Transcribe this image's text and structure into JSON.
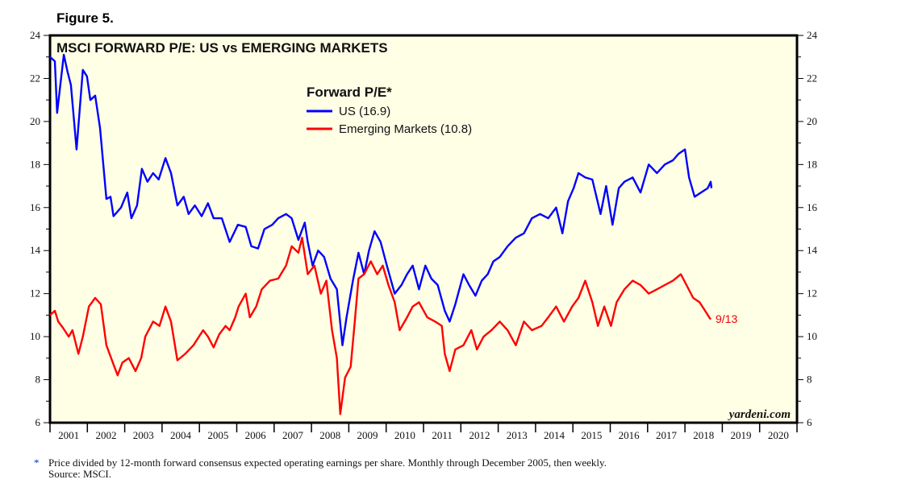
{
  "figure_label": "Figure 5.",
  "footnote": {
    "star": "*",
    "line1": "Price divided by 12-month forward consensus expected operating earnings per share. Monthly through December 2005, then weekly.",
    "line2": "Source: MSCI."
  },
  "watermark": "yardeni.com",
  "chart_data": {
    "type": "line",
    "title": "MSCI FORWARD P/E: US vs EMERGING MARKETS",
    "legend_title": "Forward P/E*",
    "legend_placement": "top-center",
    "xlim": [
      2001,
      2021
    ],
    "ylim": [
      6,
      24
    ],
    "y_ticks": [
      6,
      8,
      10,
      12,
      14,
      16,
      18,
      20,
      22,
      24
    ],
    "x_tick_labels": [
      "2001",
      "2002",
      "2003",
      "2004",
      "2005",
      "2006",
      "2007",
      "2008",
      "2009",
      "2010",
      "2011",
      "2012",
      "2013",
      "2014",
      "2015",
      "2016",
      "2017",
      "2018",
      "2019",
      "2020"
    ],
    "grid": false,
    "background": "#ffffe6",
    "end_label": "9/13",
    "series": [
      {
        "name": "US (16.9)",
        "color": "#0000ff",
        "points": [
          [
            2001.0,
            23.0
          ],
          [
            2001.13,
            22.8
          ],
          [
            2001.19,
            20.4
          ],
          [
            2001.37,
            23.1
          ],
          [
            2001.47,
            22.3
          ],
          [
            2001.56,
            21.7
          ],
          [
            2001.71,
            18.7
          ],
          [
            2001.88,
            22.4
          ],
          [
            2001.99,
            22.1
          ],
          [
            2002.08,
            21.0
          ],
          [
            2002.21,
            21.2
          ],
          [
            2002.34,
            19.7
          ],
          [
            2002.51,
            16.4
          ],
          [
            2002.62,
            16.5
          ],
          [
            2002.7,
            15.6
          ],
          [
            2002.9,
            16.0
          ],
          [
            2003.07,
            16.7
          ],
          [
            2003.18,
            15.5
          ],
          [
            2003.33,
            16.1
          ],
          [
            2003.46,
            17.8
          ],
          [
            2003.61,
            17.2
          ],
          [
            2003.76,
            17.6
          ],
          [
            2003.91,
            17.3
          ],
          [
            2004.09,
            18.3
          ],
          [
            2004.24,
            17.6
          ],
          [
            2004.41,
            16.1
          ],
          [
            2004.58,
            16.5
          ],
          [
            2004.71,
            15.7
          ],
          [
            2004.88,
            16.1
          ],
          [
            2005.06,
            15.6
          ],
          [
            2005.23,
            16.2
          ],
          [
            2005.38,
            15.5
          ],
          [
            2005.6,
            15.5
          ],
          [
            2005.81,
            14.4
          ],
          [
            2006.03,
            15.2
          ],
          [
            2006.24,
            15.1
          ],
          [
            2006.39,
            14.2
          ],
          [
            2006.57,
            14.1
          ],
          [
            2006.74,
            15.0
          ],
          [
            2006.95,
            15.2
          ],
          [
            2007.11,
            15.5
          ],
          [
            2007.32,
            15.7
          ],
          [
            2007.47,
            15.5
          ],
          [
            2007.65,
            14.5
          ],
          [
            2007.82,
            15.3
          ],
          [
            2007.9,
            14.4
          ],
          [
            2008.03,
            13.3
          ],
          [
            2008.18,
            14.0
          ],
          [
            2008.34,
            13.7
          ],
          [
            2008.51,
            12.7
          ],
          [
            2008.68,
            12.2
          ],
          [
            2008.83,
            9.6
          ],
          [
            2008.94,
            10.9
          ],
          [
            2009.11,
            12.6
          ],
          [
            2009.26,
            13.9
          ],
          [
            2009.41,
            12.9
          ],
          [
            2009.54,
            14.0
          ],
          [
            2009.69,
            14.9
          ],
          [
            2009.85,
            14.4
          ],
          [
            2010.02,
            13.3
          ],
          [
            2010.23,
            12.0
          ],
          [
            2010.41,
            12.4
          ],
          [
            2010.56,
            12.9
          ],
          [
            2010.71,
            13.3
          ],
          [
            2010.88,
            12.2
          ],
          [
            2011.05,
            13.3
          ],
          [
            2011.21,
            12.7
          ],
          [
            2011.38,
            12.4
          ],
          [
            2011.57,
            11.2
          ],
          [
            2011.7,
            10.7
          ],
          [
            2011.85,
            11.5
          ],
          [
            2012.07,
            12.9
          ],
          [
            2012.22,
            12.4
          ],
          [
            2012.39,
            11.9
          ],
          [
            2012.56,
            12.6
          ],
          [
            2012.72,
            12.9
          ],
          [
            2012.87,
            13.5
          ],
          [
            2013.04,
            13.7
          ],
          [
            2013.25,
            14.2
          ],
          [
            2013.47,
            14.6
          ],
          [
            2013.69,
            14.8
          ],
          [
            2013.9,
            15.5
          ],
          [
            2014.12,
            15.7
          ],
          [
            2014.34,
            15.5
          ],
          [
            2014.55,
            16.0
          ],
          [
            2014.72,
            14.8
          ],
          [
            2014.87,
            16.3
          ],
          [
            2015.02,
            16.9
          ],
          [
            2015.15,
            17.6
          ],
          [
            2015.33,
            17.4
          ],
          [
            2015.52,
            17.3
          ],
          [
            2015.74,
            15.7
          ],
          [
            2015.89,
            17.0
          ],
          [
            2016.06,
            15.2
          ],
          [
            2016.23,
            16.9
          ],
          [
            2016.38,
            17.2
          ],
          [
            2016.6,
            17.4
          ],
          [
            2016.81,
            16.7
          ],
          [
            2017.03,
            18.0
          ],
          [
            2017.25,
            17.6
          ],
          [
            2017.46,
            18.0
          ],
          [
            2017.68,
            18.2
          ],
          [
            2017.83,
            18.5
          ],
          [
            2018.0,
            18.7
          ],
          [
            2018.11,
            17.4
          ],
          [
            2018.26,
            16.5
          ],
          [
            2018.43,
            16.7
          ],
          [
            2018.61,
            16.9
          ],
          [
            2018.69,
            17.2
          ],
          [
            2018.71,
            16.9
          ]
        ]
      },
      {
        "name": "Emerging Markets (10.8)",
        "color": "#ff0000",
        "points": [
          [
            2001.0,
            11.0
          ],
          [
            2001.13,
            11.2
          ],
          [
            2001.22,
            10.7
          ],
          [
            2001.35,
            10.4
          ],
          [
            2001.5,
            10.0
          ],
          [
            2001.6,
            10.3
          ],
          [
            2001.76,
            9.2
          ],
          [
            2001.88,
            10.0
          ],
          [
            2002.04,
            11.4
          ],
          [
            2002.21,
            11.8
          ],
          [
            2002.36,
            11.5
          ],
          [
            2002.51,
            9.6
          ],
          [
            2002.68,
            8.8
          ],
          [
            2002.81,
            8.2
          ],
          [
            2002.94,
            8.8
          ],
          [
            2003.11,
            9.0
          ],
          [
            2003.29,
            8.4
          ],
          [
            2003.44,
            9.0
          ],
          [
            2003.55,
            10.0
          ],
          [
            2003.76,
            10.7
          ],
          [
            2003.93,
            10.5
          ],
          [
            2004.09,
            11.4
          ],
          [
            2004.24,
            10.7
          ],
          [
            2004.41,
            8.9
          ],
          [
            2004.62,
            9.2
          ],
          [
            2004.84,
            9.6
          ],
          [
            2005.1,
            10.3
          ],
          [
            2005.23,
            10.0
          ],
          [
            2005.38,
            9.5
          ],
          [
            2005.53,
            10.1
          ],
          [
            2005.7,
            10.5
          ],
          [
            2005.81,
            10.3
          ],
          [
            2005.96,
            10.9
          ],
          [
            2006.05,
            11.4
          ],
          [
            2006.24,
            12.0
          ],
          [
            2006.35,
            10.9
          ],
          [
            2006.52,
            11.4
          ],
          [
            2006.67,
            12.2
          ],
          [
            2006.89,
            12.6
          ],
          [
            2007.11,
            12.7
          ],
          [
            2007.32,
            13.3
          ],
          [
            2007.47,
            14.2
          ],
          [
            2007.65,
            13.9
          ],
          [
            2007.75,
            14.6
          ],
          [
            2007.9,
            12.9
          ],
          [
            2008.08,
            13.3
          ],
          [
            2008.25,
            12.0
          ],
          [
            2008.4,
            12.6
          ],
          [
            2008.55,
            10.3
          ],
          [
            2008.68,
            9.0
          ],
          [
            2008.77,
            6.4
          ],
          [
            2008.9,
            8.1
          ],
          [
            2009.05,
            8.6
          ],
          [
            2009.16,
            10.7
          ],
          [
            2009.26,
            12.7
          ],
          [
            2009.41,
            12.9
          ],
          [
            2009.59,
            13.5
          ],
          [
            2009.76,
            12.9
          ],
          [
            2009.91,
            13.3
          ],
          [
            2010.06,
            12.4
          ],
          [
            2010.23,
            11.6
          ],
          [
            2010.36,
            10.3
          ],
          [
            2010.56,
            10.9
          ],
          [
            2010.71,
            11.4
          ],
          [
            2010.88,
            11.6
          ],
          [
            2011.1,
            10.9
          ],
          [
            2011.31,
            10.7
          ],
          [
            2011.49,
            10.5
          ],
          [
            2011.57,
            9.2
          ],
          [
            2011.7,
            8.4
          ],
          [
            2011.85,
            9.4
          ],
          [
            2012.07,
            9.6
          ],
          [
            2012.28,
            10.3
          ],
          [
            2012.43,
            9.4
          ],
          [
            2012.61,
            10.0
          ],
          [
            2012.82,
            10.3
          ],
          [
            2013.04,
            10.7
          ],
          [
            2013.25,
            10.3
          ],
          [
            2013.47,
            9.6
          ],
          [
            2013.69,
            10.7
          ],
          [
            2013.9,
            10.3
          ],
          [
            2014.16,
            10.5
          ],
          [
            2014.34,
            10.9
          ],
          [
            2014.55,
            11.4
          ],
          [
            2014.76,
            10.7
          ],
          [
            2014.98,
            11.4
          ],
          [
            2015.15,
            11.8
          ],
          [
            2015.33,
            12.6
          ],
          [
            2015.52,
            11.6
          ],
          [
            2015.67,
            10.5
          ],
          [
            2015.84,
            11.4
          ],
          [
            2016.02,
            10.5
          ],
          [
            2016.17,
            11.6
          ],
          [
            2016.38,
            12.2
          ],
          [
            2016.6,
            12.6
          ],
          [
            2016.81,
            12.4
          ],
          [
            2017.03,
            12.0
          ],
          [
            2017.25,
            12.2
          ],
          [
            2017.46,
            12.4
          ],
          [
            2017.68,
            12.6
          ],
          [
            2017.89,
            12.9
          ],
          [
            2018.04,
            12.4
          ],
          [
            2018.22,
            11.8
          ],
          [
            2018.39,
            11.6
          ],
          [
            2018.54,
            11.2
          ],
          [
            2018.65,
            10.9
          ],
          [
            2018.69,
            10.8
          ]
        ]
      }
    ]
  }
}
